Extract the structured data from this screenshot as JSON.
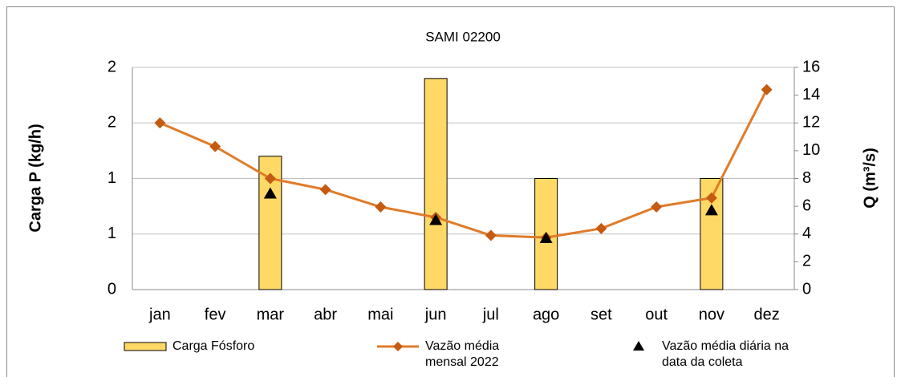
{
  "chart_data": {
    "type": "combo",
    "title": "SAMI 02200",
    "y_label": "Carga P (kg/h)",
    "y2_label": "Q (m³/s)",
    "categories": [
      "jan",
      "fev",
      "mar",
      "abr",
      "mai",
      "jun",
      "jul",
      "ago",
      "set",
      "out",
      "nov",
      "dez"
    ],
    "ylim": [
      0,
      2
    ],
    "yticks": [
      0,
      {
        "value": 0.5,
        "label": "1"
      },
      1,
      {
        "value": 1.5,
        "label": "2"
      },
      2
    ],
    "y2lim": [
      0,
      16
    ],
    "y2ticks": [
      0,
      2,
      4,
      6,
      8,
      10,
      12,
      14,
      16
    ],
    "grid": true,
    "series": [
      {
        "name": "Carga Fósforo",
        "type": "bar",
        "axis": "y",
        "color": "#ffd966",
        "values": [
          null,
          null,
          1.2,
          null,
          null,
          1.9,
          null,
          1.0,
          null,
          null,
          1.0,
          null
        ]
      },
      {
        "name": "Vazão média mensal 2022",
        "type": "line",
        "axis": "y2",
        "color": "#e07b28",
        "values": [
          12.0,
          10.3,
          8.0,
          7.2,
          5.95,
          5.2,
          3.9,
          3.75,
          4.4,
          5.95,
          6.6,
          14.4
        ]
      },
      {
        "name": "Vazão média diária na data da coleta",
        "type": "scatter",
        "axis": "y2",
        "color": "#000000",
        "values": [
          null,
          null,
          6.9,
          null,
          null,
          5.0,
          null,
          3.7,
          null,
          null,
          5.7,
          null
        ]
      }
    ]
  }
}
